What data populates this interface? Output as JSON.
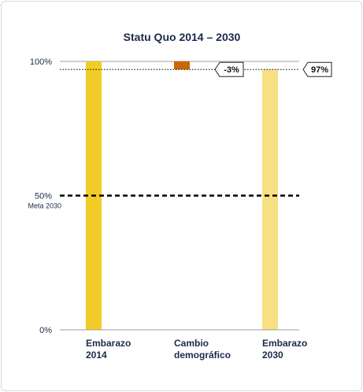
{
  "chart_data": {
    "type": "bar",
    "title": "Statu Quo 2014 – 2030",
    "categories": [
      {
        "line1": "Embarazo",
        "line2": "2014"
      },
      {
        "line1": "Cambio",
        "line2": "demográfico"
      },
      {
        "line1": "Embarazo",
        "line2": "2030"
      }
    ],
    "bars": [
      {
        "start": 0,
        "end": 100,
        "color": "#f2cc27",
        "label": ""
      },
      {
        "start": 97,
        "end": 100,
        "color": "#cc6600",
        "label": "-3%"
      },
      {
        "start": 0,
        "end": 97,
        "color": "#f7e082",
        "label": "97%"
      }
    ],
    "ylim": [
      0,
      100
    ],
    "yticks": [
      {
        "value": 100,
        "label": "100%",
        "sublabel": ""
      },
      {
        "value": 50,
        "label": "50%",
        "sublabel": "Meta 2030"
      },
      {
        "value": 0,
        "label": "0%",
        "sublabel": ""
      }
    ],
    "reference_lines": [
      {
        "value": 50,
        "style": "dashed-bold",
        "color": "#000000"
      },
      {
        "value": 97,
        "style": "dotted",
        "color": "#000000"
      }
    ]
  }
}
